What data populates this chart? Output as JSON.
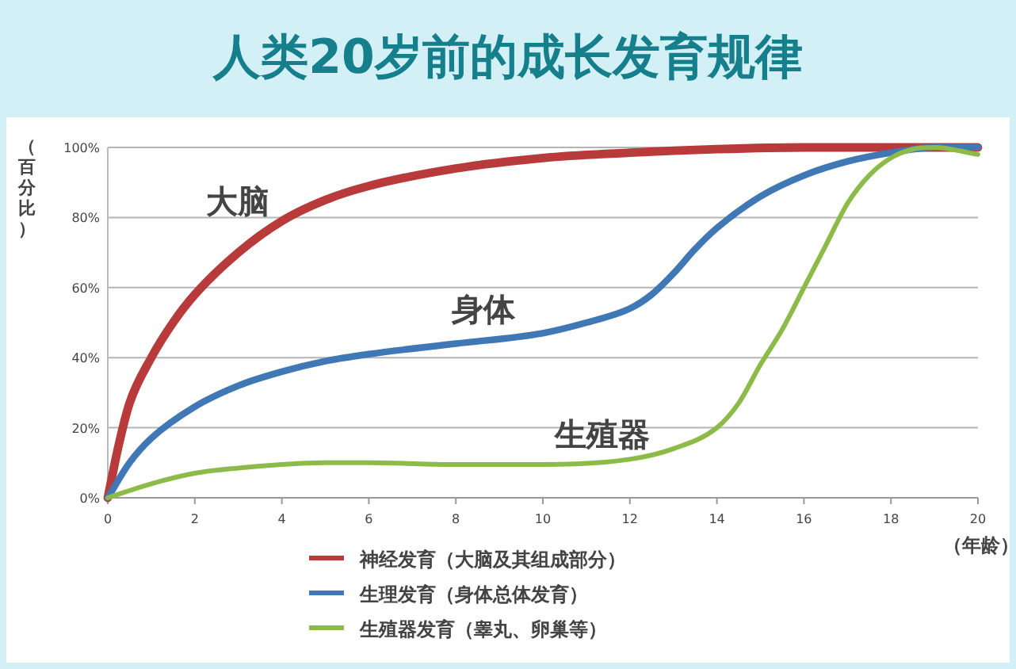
{
  "chart_data": {
    "type": "line",
    "title": "人类20岁前的成长发育规律",
    "ylabel": "（百分比）",
    "xlabel": "（年龄）",
    "xlim": [
      0,
      20
    ],
    "xticks": [
      0,
      2,
      4,
      6,
      8,
      10,
      12,
      14,
      16,
      18,
      20
    ],
    "ylim": [
      0,
      100
    ],
    "yticks": [
      {
        "value": 0,
        "label": "0%"
      },
      {
        "value": 20,
        "label": "20%"
      },
      {
        "value": 40,
        "label": "40%"
      },
      {
        "value": 60,
        "label": "60%"
      },
      {
        "value": 80,
        "label": "80%"
      },
      {
        "value": 100,
        "label": "100%"
      }
    ],
    "grid": "y",
    "legend": "bottom",
    "marker": "none",
    "line_style": "solid",
    "series": [
      {
        "name": "神经发育（大脑及其组成部分）",
        "color": "#b83a3a",
        "x": [
          0,
          0.25,
          0.5,
          1,
          1.5,
          2,
          3,
          4,
          5,
          6,
          8,
          10,
          12,
          14,
          16,
          20
        ],
        "values": [
          0,
          15,
          27,
          40,
          50,
          58,
          70,
          79,
          85,
          89,
          94,
          97,
          98.5,
          99.5,
          100,
          100
        ]
      },
      {
        "name": "生理发育（身体总体发育）",
        "color": "#3f78b4",
        "x": [
          0,
          0.5,
          1,
          2,
          3,
          4,
          5,
          6,
          8,
          10,
          11,
          12,
          12.5,
          13,
          13.5,
          14,
          15,
          16,
          17,
          18,
          19,
          20
        ],
        "values": [
          0,
          10,
          17,
          26,
          32,
          36,
          39,
          41,
          44,
          47,
          50,
          54,
          58,
          64,
          71,
          77,
          86,
          92,
          96,
          98.5,
          100,
          100
        ]
      },
      {
        "name": "生殖器发育（睾丸、卵巢等）",
        "color": "#8dbb4a",
        "x": [
          0,
          1,
          2,
          3,
          4,
          5,
          6,
          8,
          10,
          12,
          13,
          14,
          14.5,
          15,
          15.5,
          16,
          16.5,
          17,
          17.5,
          18,
          18.5,
          19,
          20
        ],
        "values": [
          0,
          4,
          7,
          8.5,
          9.5,
          10,
          10,
          9.5,
          9.5,
          11,
          14,
          20,
          27,
          38,
          48,
          60,
          72,
          84,
          92,
          97,
          99.5,
          100,
          98
        ]
      }
    ],
    "annotations": [
      "大脑",
      "身体",
      "生殖器"
    ]
  }
}
